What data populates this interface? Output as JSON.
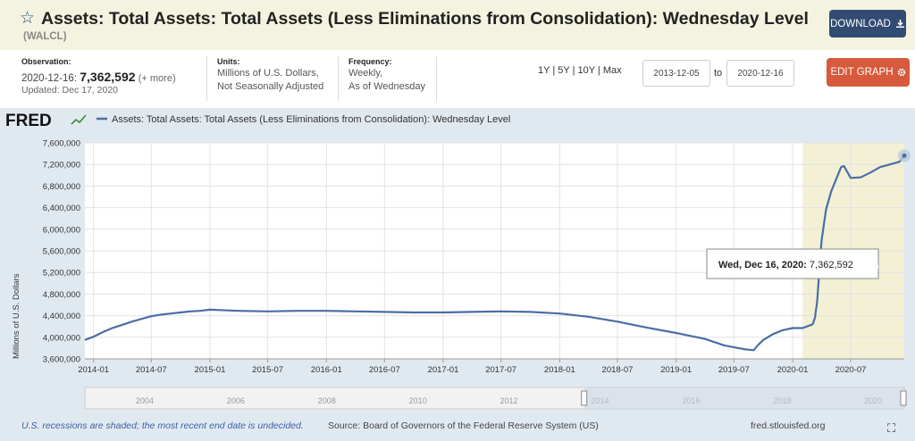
{
  "header": {
    "title": "Assets: Total Assets: Total Assets (Less Eliminations from Consolidation): Wednesday Level",
    "series_id": "(WALCL)",
    "download_label": "DOWNLOAD",
    "star_icon": "star-icon",
    "download_icon": "download-icon"
  },
  "meta": {
    "observation_label": "Observation:",
    "observation_date": "2020-12-16:",
    "observation_value": "7,362,592",
    "observation_more": "(+ more)",
    "updated": "Updated: Dec 17, 2020",
    "units_label": "Units:",
    "units_line1": "Millions of U.S. Dollars,",
    "units_line2": "Not Seasonally Adjusted",
    "frequency_label": "Frequency:",
    "frequency_line1": "Weekly,",
    "frequency_line2": "As of Wednesday"
  },
  "controls": {
    "ranges": [
      "1Y",
      "5Y",
      "10Y",
      "Max"
    ],
    "start_date": "2013-12-05",
    "to_label": "to",
    "end_date": "2020-12-16",
    "edit_label": "EDIT GRAPH",
    "gear_icon": "gear-icon"
  },
  "legend": {
    "logo": "FRED",
    "series_label": "Assets: Total Assets: Total Assets (Less Eliminations from Consolidation): Wednesday Level"
  },
  "tooltip": {
    "date": "Wed, Dec 16, 2020:",
    "value": "7,362,592"
  },
  "footer": {
    "recession_note": "U.S. recessions are shaded; the most recent end date is undecided.",
    "source": "Source: Board of Governors of the Federal Reserve System (US)",
    "url": "fred.stlouisfed.org",
    "fullscreen_icon": "fullscreen-icon"
  },
  "colors": {
    "line": "#4a6ea5",
    "recession": "#f3f0d5",
    "panel": "#e1e9f0",
    "header": "#f4f3e0"
  },
  "chart_data": {
    "type": "line",
    "ylabel": "Millions of U.S. Dollars",
    "ylim": [
      3600000,
      7600000
    ],
    "yticks": [
      "3,600,000",
      "4,000,000",
      "4,400,000",
      "4,800,000",
      "5,200,000",
      "5,600,000",
      "6,000,000",
      "6,400,000",
      "6,800,000",
      "7,200,000",
      "7,600,000"
    ],
    "xticks": [
      "2014-01",
      "2014-07",
      "2015-01",
      "2015-07",
      "2016-01",
      "2016-07",
      "2017-01",
      "2017-07",
      "2018-01",
      "2018-07",
      "2019-01",
      "2019-07",
      "2020-01",
      "2020-07"
    ],
    "xlim": [
      "2013-12-05",
      "2020-12-16"
    ],
    "recession": [
      "2020-02-01",
      null
    ],
    "navigator_labels": [
      "2004",
      "2006",
      "2008",
      "2010",
      "2012",
      "2014",
      "2016",
      "2018",
      "2020"
    ],
    "series": [
      {
        "name": "Assets: Total Assets: Total Assets (Less Eliminations from Consolidation): Wednesday Level",
        "x": [
          "2013-12-05",
          "2014-01-01",
          "2014-02-01",
          "2014-03-01",
          "2014-04-01",
          "2014-05-01",
          "2014-06-01",
          "2014-07-01",
          "2014-08-01",
          "2014-09-01",
          "2014-10-01",
          "2014-11-01",
          "2014-12-01",
          "2015-01-01",
          "2015-04-01",
          "2015-07-01",
          "2015-10-01",
          "2016-01-01",
          "2016-04-01",
          "2016-07-01",
          "2016-10-01",
          "2017-01-01",
          "2017-04-01",
          "2017-07-01",
          "2017-10-01",
          "2018-01-01",
          "2018-04-01",
          "2018-07-01",
          "2018-10-01",
          "2019-01-01",
          "2019-04-01",
          "2019-06-01",
          "2019-08-01",
          "2019-09-01",
          "2019-09-15",
          "2019-10-01",
          "2019-11-01",
          "2019-12-01",
          "2020-01-01",
          "2020-02-01",
          "2020-03-04",
          "2020-03-11",
          "2020-03-18",
          "2020-03-25",
          "2020-04-01",
          "2020-04-15",
          "2020-05-01",
          "2020-06-01",
          "2020-06-10",
          "2020-07-01",
          "2020-08-01",
          "2020-09-01",
          "2020-10-01",
          "2020-11-01",
          "2020-12-01",
          "2020-12-16"
        ],
        "values": [
          3950000,
          4010000,
          4100000,
          4170000,
          4230000,
          4290000,
          4340000,
          4390000,
          4420000,
          4440000,
          4460000,
          4480000,
          4490000,
          4510000,
          4490000,
          4480000,
          4490000,
          4490000,
          4480000,
          4470000,
          4460000,
          4460000,
          4470000,
          4480000,
          4470000,
          4440000,
          4380000,
          4290000,
          4180000,
          4080000,
          3970000,
          3850000,
          3780000,
          3760000,
          3860000,
          3950000,
          4060000,
          4130000,
          4170000,
          4170000,
          4240000,
          4360000,
          4660000,
          5250000,
          5800000,
          6370000,
          6700000,
          7150000,
          7170000,
          6950000,
          6960000,
          7050000,
          7150000,
          7200000,
          7250000,
          7362592
        ]
      }
    ]
  }
}
